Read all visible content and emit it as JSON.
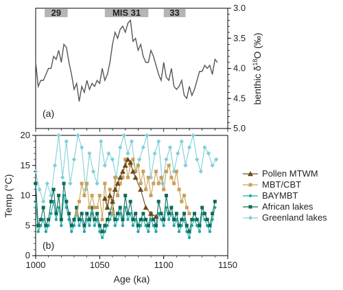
{
  "chart_data": [
    {
      "panel_label": "(a)",
      "type": "line",
      "ylabel": "benthic δ18O (‰)",
      "ylabel_main": "benthic δ",
      "ylabel_sup": "18",
      "ylabel_rest": "O (‰)",
      "ylim": [
        5.0,
        3.0
      ],
      "y_inverted": true,
      "y_ticks": [
        "3.0",
        "3.5",
        "4.0",
        "4.5",
        "5.0"
      ],
      "mis_bars": [
        {
          "label": "29",
          "x_start": 1007,
          "x_end": 1025
        },
        {
          "label": "MIS 31",
          "x_start": 1054,
          "x_end": 1088
        },
        {
          "label": "33",
          "x_start": 1100,
          "x_end": 1117
        }
      ],
      "series": [
        {
          "color": "#555555",
          "x": [
            1000,
            1002,
            1004,
            1006,
            1008,
            1010,
            1012,
            1014,
            1016,
            1018,
            1020,
            1022,
            1024,
            1026,
            1028,
            1030,
            1032,
            1034,
            1036,
            1038,
            1040,
            1042,
            1044,
            1046,
            1048,
            1050,
            1052,
            1054,
            1056,
            1058,
            1060,
            1062,
            1064,
            1066,
            1068,
            1070,
            1072,
            1074,
            1076,
            1078,
            1080,
            1082,
            1084,
            1086,
            1088,
            1090,
            1092,
            1094,
            1096,
            1098,
            1100,
            1102,
            1104,
            1106,
            1108,
            1110,
            1112,
            1114,
            1116,
            1118,
            1120,
            1122,
            1124,
            1126,
            1128,
            1130,
            1132,
            1134,
            1136,
            1138,
            1140,
            1142
          ],
          "y": [
            3.9,
            4.3,
            4.2,
            4.2,
            4.1,
            4.0,
            4.0,
            3.8,
            3.85,
            3.7,
            3.9,
            3.6,
            3.65,
            3.9,
            4.1,
            4.35,
            4.25,
            4.55,
            4.3,
            4.4,
            4.2,
            4.35,
            4.25,
            4.3,
            4.2,
            4.25,
            4.0,
            4.2,
            4.1,
            3.9,
            3.6,
            3.4,
            3.5,
            3.35,
            3.3,
            3.4,
            3.25,
            3.2,
            3.55,
            3.5,
            3.7,
            3.6,
            3.8,
            3.9,
            3.9,
            3.7,
            3.8,
            3.95,
            4.1,
            4.2,
            3.9,
            4.15,
            4.2,
            4.0,
            4.3,
            4.35,
            4.3,
            4.2,
            4.45,
            4.5,
            4.3,
            4.45,
            4.35,
            4.2,
            4.05,
            4.05,
            3.95,
            4.0,
            3.95,
            4.1,
            3.85,
            3.9
          ]
        }
      ]
    },
    {
      "panel_label": "(b)",
      "type": "line",
      "xlabel": "Age (ka)",
      "ylabel": "Temp (°C)",
      "xlim": [
        1000,
        1150
      ],
      "ylim": [
        0,
        20
      ],
      "x_ticks": [
        "1000",
        "1050",
        "1100",
        "1150"
      ],
      "y_ticks": [
        "0",
        "5",
        "10",
        "15",
        "20"
      ],
      "legend_position": "right",
      "series": [
        {
          "name": "Pollen MTWM",
          "color": "#6b4a1b",
          "marker": "triangle",
          "x": [
            1054,
            1056,
            1058,
            1060,
            1062,
            1064,
            1066,
            1068,
            1070,
            1072,
            1074,
            1076,
            1078,
            1082,
            1086,
            1090,
            1094
          ],
          "y": [
            9.5,
            8,
            10,
            9,
            11,
            12,
            13,
            14,
            15,
            16,
            15.5,
            14,
            13,
            11,
            8,
            7,
            6.5
          ]
        },
        {
          "name": "MBT/CBT",
          "color": "#c9a15a",
          "marker": "square",
          "x": [
            1032,
            1034,
            1036,
            1038,
            1040,
            1042,
            1044,
            1046,
            1048,
            1050,
            1052,
            1054,
            1056,
            1058,
            1060,
            1062,
            1064,
            1066,
            1068,
            1070,
            1072,
            1074,
            1076,
            1078,
            1080,
            1082,
            1084,
            1086,
            1088,
            1090,
            1092,
            1094,
            1096,
            1098,
            1100,
            1102,
            1104,
            1106,
            1108,
            1110,
            1112,
            1114,
            1116,
            1118,
            1120
          ],
          "y": [
            7,
            9,
            12,
            10,
            12,
            8,
            10,
            8,
            8,
            10,
            6,
            12,
            8,
            11,
            7,
            13,
            10,
            12,
            13,
            16,
            13,
            15,
            16,
            14,
            15,
            12,
            14,
            11,
            13,
            10,
            12,
            14,
            12,
            13,
            11,
            14,
            15,
            13,
            12,
            14,
            11,
            9,
            10,
            8,
            7
          ]
        },
        {
          "name": "BAYMBT",
          "color": "#20a7a7",
          "marker": "dot",
          "x": [
            1000,
            1002,
            1004,
            1006,
            1008,
            1010,
            1012,
            1014,
            1016,
            1018,
            1020,
            1022,
            1024,
            1026,
            1028,
            1030,
            1032,
            1034,
            1036,
            1038,
            1040,
            1042,
            1044,
            1046,
            1048,
            1050,
            1052,
            1054,
            1056,
            1058,
            1060,
            1062,
            1064,
            1066,
            1068,
            1070,
            1072,
            1074,
            1076,
            1078,
            1080,
            1082,
            1084,
            1086,
            1088,
            1090,
            1092,
            1094,
            1096,
            1098,
            1100,
            1102,
            1104,
            1106,
            1108,
            1110,
            1112,
            1114,
            1116,
            1118,
            1120,
            1122,
            1124,
            1126,
            1128,
            1130,
            1132,
            1134,
            1136,
            1138,
            1140
          ],
          "y": [
            9,
            4,
            5,
            6,
            4,
            5,
            7,
            9,
            6,
            8,
            5,
            10,
            8,
            6,
            4,
            5,
            7,
            5,
            6,
            4,
            6,
            5,
            7,
            5,
            6,
            4,
            3,
            4,
            5,
            6,
            7,
            5,
            6,
            7,
            5,
            8,
            6,
            7,
            5,
            6,
            4,
            5,
            6,
            5,
            4,
            6,
            5,
            4,
            7,
            6,
            5,
            8,
            6,
            7,
            5,
            6,
            4,
            5,
            6,
            4,
            3,
            5,
            6,
            5,
            4,
            7,
            6,
            5,
            4,
            6,
            8
          ]
        },
        {
          "name": "African lakes",
          "color": "#0f6b57",
          "marker": "square",
          "x": [
            1000,
            1002,
            1004,
            1006,
            1008,
            1010,
            1012,
            1014,
            1016,
            1018,
            1020,
            1022,
            1024,
            1026,
            1028,
            1030,
            1032,
            1034,
            1036,
            1038,
            1040,
            1042,
            1044,
            1046,
            1048,
            1050,
            1052,
            1054,
            1056,
            1058,
            1060,
            1062,
            1064,
            1066,
            1068,
            1070,
            1072,
            1074,
            1076,
            1078,
            1080,
            1082,
            1084,
            1086,
            1088,
            1090,
            1092,
            1094,
            1096,
            1098,
            1100,
            1102,
            1104,
            1106,
            1108,
            1110,
            1112,
            1114,
            1116,
            1118,
            1120,
            1122,
            1124,
            1126,
            1128,
            1130,
            1132,
            1134,
            1136,
            1138,
            1140
          ],
          "y": [
            12,
            5,
            6,
            8,
            5,
            6,
            9,
            11,
            7,
            10,
            6,
            12,
            9,
            7,
            5,
            6,
            8,
            6,
            7,
            5,
            7,
            6,
            8,
            6,
            7,
            5,
            4,
            5,
            6,
            7,
            9,
            6,
            7,
            8,
            6,
            10,
            7,
            9,
            6,
            7,
            5,
            6,
            7,
            6,
            5,
            7,
            6,
            5,
            9,
            7,
            6,
            10,
            7,
            8,
            6,
            7,
            5,
            6,
            7,
            5,
            4,
            6,
            7,
            6,
            5,
            8,
            7,
            6,
            5,
            7,
            9
          ]
        },
        {
          "name": "Greenland lakes",
          "color": "#7fd0d8",
          "marker": "diamond",
          "x": [
            1000,
            1003,
            1006,
            1009,
            1012,
            1015,
            1018,
            1021,
            1024,
            1027,
            1030,
            1033,
            1036,
            1039,
            1042,
            1045,
            1048,
            1051,
            1054,
            1057,
            1060,
            1063,
            1066,
            1069,
            1072,
            1075,
            1078,
            1081,
            1084,
            1087,
            1090,
            1093,
            1096,
            1099,
            1102,
            1105,
            1108,
            1111,
            1114,
            1117,
            1120,
            1123,
            1126,
            1129,
            1132,
            1135,
            1138,
            1141
          ],
          "y": [
            14,
            11,
            9,
            12,
            10,
            15,
            20,
            13,
            19,
            12,
            16,
            20,
            18,
            11,
            17,
            14,
            12,
            19,
            15,
            17,
            16,
            13,
            18,
            20,
            17,
            19,
            14,
            16,
            18,
            20,
            13,
            17,
            19,
            12,
            16,
            18,
            14,
            17,
            19,
            15,
            18,
            20,
            16,
            14,
            18,
            17,
            15,
            16
          ]
        }
      ]
    }
  ]
}
